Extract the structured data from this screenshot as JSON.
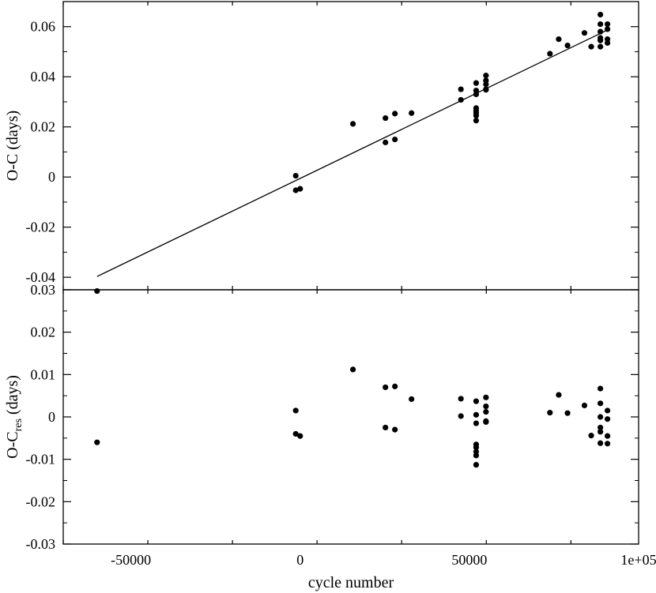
{
  "chart_data": [
    {
      "type": "scatter",
      "panel": "top",
      "ylabel": "O-C (days)",
      "ylim": [
        -0.045,
        0.07
      ],
      "xlim": [
        -70000,
        100000
      ],
      "yticks": [
        -0.04,
        -0.02,
        0,
        0.02,
        0.04,
        0.06
      ],
      "ytick_labels": [
        "-0.04",
        "-0.02",
        "0",
        "0.02",
        "0.04",
        "0.06"
      ],
      "grid": false,
      "fit_line": {
        "x": [
          -60000,
          91000
        ],
        "y": [
          -0.0397,
          0.0588
        ]
      },
      "points": [
        [
          -60000,
          -0.0455
        ],
        [
          -1300,
          0.0005
        ],
        [
          -1300,
          -0.0053
        ],
        [
          0,
          -0.0047
        ],
        [
          15600,
          0.0212
        ],
        [
          25200,
          0.0235
        ],
        [
          25200,
          0.0138
        ],
        [
          28000,
          0.0253
        ],
        [
          28000,
          0.015
        ],
        [
          32900,
          0.0255
        ],
        [
          47500,
          0.035
        ],
        [
          47500,
          0.0308
        ],
        [
          52000,
          0.0375
        ],
        [
          52000,
          0.0345
        ],
        [
          52000,
          0.033
        ],
        [
          52000,
          0.0275
        ],
        [
          52000,
          0.0265
        ],
        [
          52000,
          0.0255
        ],
        [
          52000,
          0.0245
        ],
        [
          52000,
          0.0225
        ],
        [
          54900,
          0.0405
        ],
        [
          54900,
          0.0385
        ],
        [
          54900,
          0.037
        ],
        [
          54900,
          0.035
        ],
        [
          54900,
          0.0348
        ],
        [
          73800,
          0.0492
        ],
        [
          76400,
          0.055
        ],
        [
          79000,
          0.0525
        ],
        [
          84000,
          0.0575
        ],
        [
          86000,
          0.052
        ],
        [
          88700,
          0.0648
        ],
        [
          88700,
          0.061
        ],
        [
          88700,
          0.058
        ],
        [
          88700,
          0.0555
        ],
        [
          88700,
          0.0545
        ],
        [
          88700,
          0.052
        ],
        [
          90800,
          0.061
        ],
        [
          90800,
          0.059
        ],
        [
          90800,
          0.055
        ],
        [
          90800,
          0.0535
        ]
      ]
    },
    {
      "type": "scatter",
      "panel": "bottom",
      "ylabel": "O-C",
      "ylabel_subscript": "res",
      "ylabel_suffix": " (days)",
      "xlabel": "cycle number",
      "ylim": [
        -0.03,
        0.03
      ],
      "xlim": [
        -70000,
        100000
      ],
      "yticks": [
        -0.03,
        -0.02,
        -0.01,
        0,
        0.01,
        0.02,
        0.03
      ],
      "ytick_labels": [
        "-0.03",
        "-0.02",
        "-0.01",
        "0",
        "0.01",
        "0.02",
        "0.03"
      ],
      "xticks": [
        -50000,
        0,
        50000,
        100000
      ],
      "xtick_labels": [
        "-50000",
        "0",
        "50000",
        "1e+05"
      ],
      "grid": false,
      "points": [
        [
          -60000,
          -0.006
        ],
        [
          -1300,
          0.0015
        ],
        [
          -1300,
          -0.004
        ],
        [
          0,
          -0.0045
        ],
        [
          15600,
          0.0112
        ],
        [
          25200,
          0.007
        ],
        [
          25200,
          -0.0025
        ],
        [
          28000,
          0.0072
        ],
        [
          28000,
          -0.003
        ],
        [
          32900,
          0.0042
        ],
        [
          47500,
          0.0043
        ],
        [
          47500,
          0.0002
        ],
        [
          52000,
          0.0037
        ],
        [
          52000,
          0.0005
        ],
        [
          52000,
          -0.0015
        ],
        [
          52000,
          -0.0065
        ],
        [
          52000,
          -0.0072
        ],
        [
          52000,
          -0.0082
        ],
        [
          52000,
          -0.0091
        ],
        [
          52000,
          -0.0113
        ],
        [
          54900,
          0.0046
        ],
        [
          54900,
          0.0025
        ],
        [
          54900,
          0.0012
        ],
        [
          54900,
          -0.001
        ],
        [
          54900,
          -0.0012
        ],
        [
          73800,
          0.001
        ],
        [
          76400,
          0.0052
        ],
        [
          79000,
          0.0009
        ],
        [
          84000,
          0.0027
        ],
        [
          86000,
          -0.0044
        ],
        [
          88700,
          0.0067
        ],
        [
          88700,
          0.0032
        ],
        [
          88700,
          0.0
        ],
        [
          88700,
          -0.0025
        ],
        [
          88700,
          -0.0035
        ],
        [
          88700,
          -0.0062
        ],
        [
          90800,
          0.0015
        ],
        [
          90800,
          -0.0005
        ],
        [
          90800,
          -0.0045
        ],
        [
          90800,
          -0.0063
        ]
      ]
    }
  ]
}
